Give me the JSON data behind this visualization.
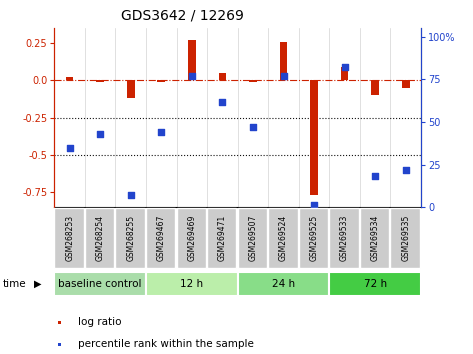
{
  "title": "GDS3642 / 12269",
  "samples": [
    "GSM268253",
    "GSM268254",
    "GSM268255",
    "GSM269467",
    "GSM269469",
    "GSM269471",
    "GSM269507",
    "GSM269524",
    "GSM269525",
    "GSM269533",
    "GSM269534",
    "GSM269535"
  ],
  "log_ratio": [
    0.02,
    -0.01,
    -0.12,
    -0.01,
    0.27,
    0.05,
    -0.01,
    0.26,
    -0.77,
    0.09,
    -0.1,
    -0.05
  ],
  "percentile_rank": [
    35,
    43,
    7,
    44,
    77,
    62,
    47,
    77,
    1,
    82,
    18,
    22
  ],
  "groups": [
    {
      "label": "baseline control",
      "start": 0,
      "end": 3,
      "color": "#aaddaa"
    },
    {
      "label": "12 h",
      "start": 3,
      "end": 6,
      "color": "#bbeeaa"
    },
    {
      "label": "24 h",
      "start": 6,
      "end": 9,
      "color": "#88dd88"
    },
    {
      "label": "72 h",
      "start": 9,
      "end": 12,
      "color": "#44cc44"
    }
  ],
  "ylim_left": [
    -0.85,
    0.35
  ],
  "ylim_right": [
    0,
    105
  ],
  "yticks_left": [
    0.25,
    0.0,
    -0.25,
    -0.5,
    -0.75
  ],
  "yticks_right": [
    0,
    25,
    50,
    75,
    100
  ],
  "bar_color": "#cc2200",
  "dot_color": "#2244cc",
  "hline_color": "#cc2200",
  "dotted_line_color": "#111111",
  "background_color": "#ffffff",
  "plot_bg": "#ffffff",
  "bar_width": 0.25,
  "dot_size": 25
}
